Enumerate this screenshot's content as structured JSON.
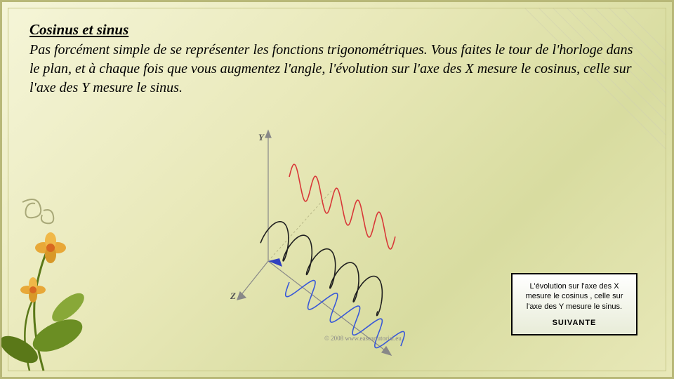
{
  "slide": {
    "heading": "Cosinus et sinus",
    "body": "Pas forcément simple de se représenter les fonctions trigonométriques. Vous faites le tour de l'horloge dans le plan, et à chaque fois que vous augmentez l'angle, l'évolution sur l'axe des X mesure le cosinus, celle sur l'axe des Y mesure le sinus."
  },
  "diagram": {
    "axis_y_label": "Y",
    "axis_z_label": "Z",
    "copyright": "© 2008 www.easeartutorial.eu",
    "colors": {
      "red_wave": "#d83838",
      "black_spiral": "#202020",
      "blue_wave": "#3858d8",
      "axis": "#888888",
      "dashed": "#b8b888"
    },
    "spiral_turns": 5,
    "wave_periods": 5
  },
  "infobox": {
    "text": "L'évolution sur l'axe des X mesure le cosinus , celle sur l'axe des Y mesure le sinus.",
    "button": "SUIVANTE"
  },
  "deco": {
    "flower_petal_color": "#e8a838",
    "flower_center_color": "#d86820",
    "leaf_color": "#6b8e23",
    "swirl_color": "#a8a878",
    "diag_line_color": "#d0d0b0",
    "diag_text": "/ / / / / / / /"
  }
}
